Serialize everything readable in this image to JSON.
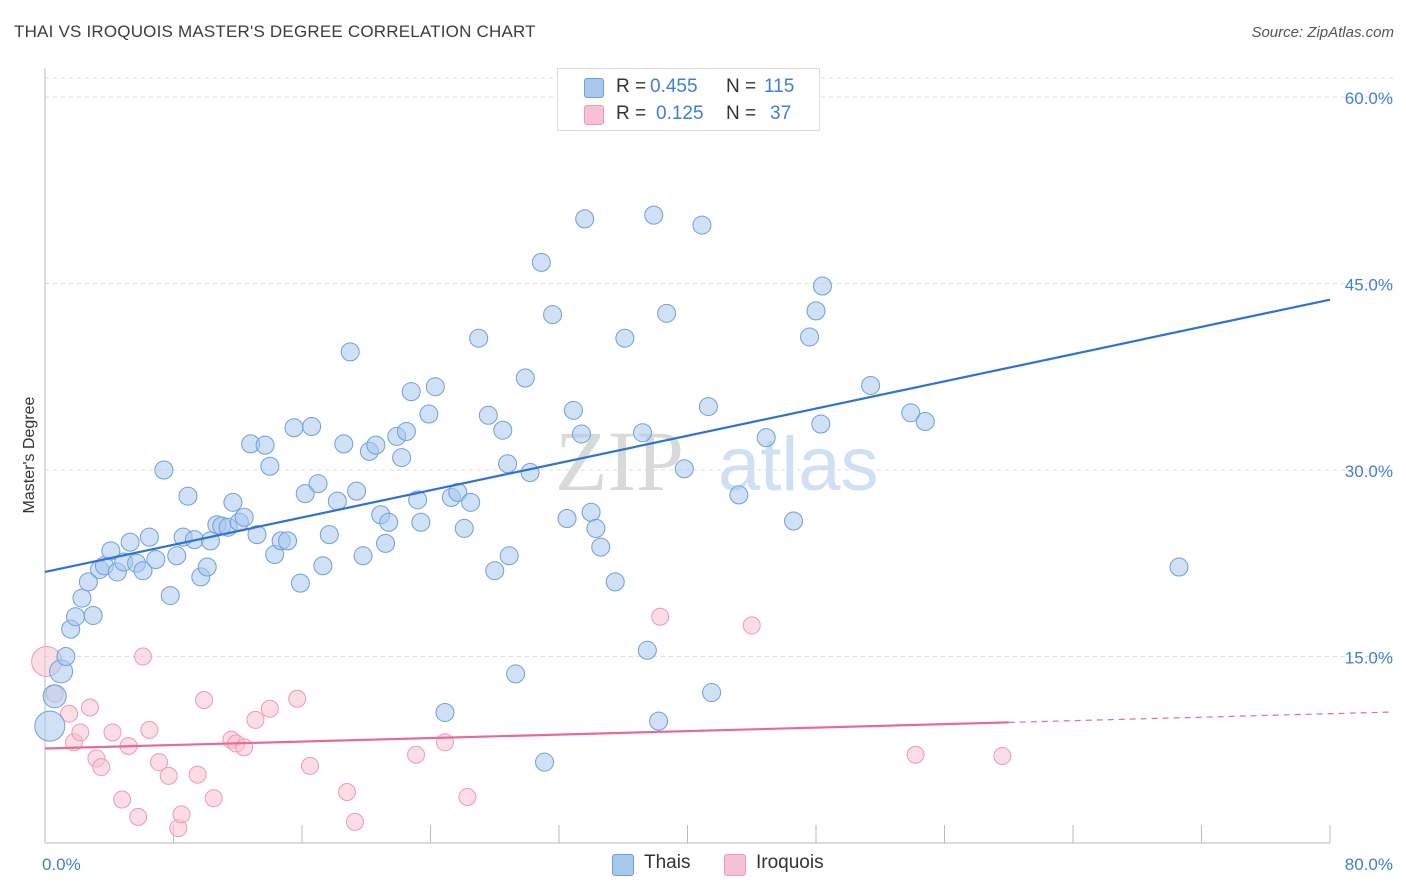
{
  "title": "THAI VS IROQUOIS MASTER'S DEGREE CORRELATION CHART",
  "source": "Source: ZipAtlas.com",
  "watermark": {
    "zip": "ZIP",
    "atlas": "atlas"
  },
  "legend": {
    "rows": [
      {
        "r_label": "R =",
        "r_value": "0.455",
        "n_label": "N =",
        "n_value": "115"
      },
      {
        "r_label": "R =",
        "r_value": "0.125",
        "n_label": "N =",
        "n_value": "37"
      }
    ]
  },
  "bottom_legend": {
    "thais": "Thais",
    "iroquois": "Iroquois"
  },
  "colors": {
    "thais_fill": "#a9c8ee",
    "thais_stroke": "#6d9fdd",
    "thais_line": "#2f73cf",
    "iroquois_fill": "#f6c1d0",
    "iroquois_stroke": "#ef9ab3",
    "iroquois_line": "#e76b95",
    "tick_label": "#3f7fd4",
    "grid": "#dedede"
  },
  "chart_data": {
    "type": "scatter",
    "title": "THAI VS IROQUOIS MASTER'S DEGREE CORRELATION CHART",
    "xlabel": "",
    "ylabel": "Master's Degree",
    "xlim": [
      0,
      80
    ],
    "ylim": [
      0,
      60
    ],
    "x_tick_labels": [
      "0.0%",
      "80.0%"
    ],
    "y_ticks": [
      15,
      30,
      45,
      60
    ],
    "y_tick_labels": [
      "15.0%",
      "30.0%",
      "45.0%",
      "60.0%"
    ],
    "grid": true,
    "legend_position": "top-center",
    "series": [
      {
        "name": "Thais",
        "r": 0.455,
        "n": 115,
        "trend": {
          "x": [
            0,
            80
          ],
          "y": [
            21.8,
            43.7
          ],
          "dashed_from": null
        },
        "points": [
          [
            0.3,
            9.4
          ],
          [
            0.6,
            11.8
          ],
          [
            1.0,
            13.8
          ],
          [
            1.3,
            15.0
          ],
          [
            1.6,
            17.2
          ],
          [
            1.9,
            18.2
          ],
          [
            2.3,
            19.7
          ],
          [
            2.7,
            21.0
          ],
          [
            3.0,
            18.3
          ],
          [
            3.4,
            22.0
          ],
          [
            3.7,
            22.3
          ],
          [
            4.1,
            23.5
          ],
          [
            4.5,
            21.8
          ],
          [
            4.9,
            22.6
          ],
          [
            5.3,
            24.2
          ],
          [
            5.7,
            22.5
          ],
          [
            6.1,
            21.9
          ],
          [
            6.5,
            24.6
          ],
          [
            6.9,
            22.8
          ],
          [
            7.4,
            30.0
          ],
          [
            7.8,
            19.9
          ],
          [
            8.2,
            23.1
          ],
          [
            8.6,
            24.6
          ],
          [
            8.9,
            27.9
          ],
          [
            9.3,
            24.4
          ],
          [
            9.7,
            21.4
          ],
          [
            10.1,
            22.2
          ],
          [
            10.3,
            24.3
          ],
          [
            10.7,
            25.6
          ],
          [
            11.0,
            25.5
          ],
          [
            11.4,
            25.4
          ],
          [
            11.7,
            27.4
          ],
          [
            12.1,
            25.8
          ],
          [
            12.4,
            26.2
          ],
          [
            12.8,
            32.1
          ],
          [
            13.2,
            24.8
          ],
          [
            13.7,
            32.0
          ],
          [
            14.0,
            30.3
          ],
          [
            14.3,
            23.2
          ],
          [
            14.7,
            24.3
          ],
          [
            15.1,
            24.3
          ],
          [
            15.5,
            33.4
          ],
          [
            15.9,
            20.9
          ],
          [
            16.2,
            28.1
          ],
          [
            16.6,
            33.5
          ],
          [
            17.0,
            28.9
          ],
          [
            17.3,
            22.3
          ],
          [
            17.7,
            24.8
          ],
          [
            18.2,
            27.5
          ],
          [
            18.6,
            32.1
          ],
          [
            19.0,
            39.5
          ],
          [
            19.4,
            28.3
          ],
          [
            19.8,
            23.1
          ],
          [
            20.2,
            31.5
          ],
          [
            20.6,
            32.0
          ],
          [
            20.9,
            26.4
          ],
          [
            21.2,
            24.1
          ],
          [
            21.4,
            25.8
          ],
          [
            21.9,
            32.7
          ],
          [
            22.2,
            31.0
          ],
          [
            22.5,
            33.1
          ],
          [
            22.8,
            36.3
          ],
          [
            23.2,
            27.6
          ],
          [
            23.4,
            25.8
          ],
          [
            23.9,
            34.5
          ],
          [
            24.3,
            36.7
          ],
          [
            24.9,
            10.5
          ],
          [
            25.3,
            27.8
          ],
          [
            25.7,
            28.2
          ],
          [
            26.1,
            25.3
          ],
          [
            26.5,
            27.4
          ],
          [
            27.0,
            40.6
          ],
          [
            27.6,
            34.4
          ],
          [
            28.0,
            21.9
          ],
          [
            28.5,
            33.2
          ],
          [
            28.8,
            30.5
          ],
          [
            28.9,
            23.1
          ],
          [
            29.3,
            13.6
          ],
          [
            29.9,
            37.4
          ],
          [
            30.2,
            29.8
          ],
          [
            30.9,
            46.7
          ],
          [
            31.1,
            6.5
          ],
          [
            31.6,
            42.5
          ],
          [
            32.5,
            26.1
          ],
          [
            32.9,
            34.8
          ],
          [
            33.4,
            32.9
          ],
          [
            33.6,
            50.2
          ],
          [
            34.0,
            26.6
          ],
          [
            34.3,
            25.3
          ],
          [
            34.6,
            23.8
          ],
          [
            35.5,
            21.0
          ],
          [
            36.1,
            40.6
          ],
          [
            37.2,
            33.0
          ],
          [
            37.5,
            15.5
          ],
          [
            37.9,
            50.5
          ],
          [
            38.2,
            9.8
          ],
          [
            38.7,
            42.6
          ],
          [
            39.8,
            30.1
          ],
          [
            40.9,
            49.7
          ],
          [
            41.3,
            35.1
          ],
          [
            41.5,
            12.1
          ],
          [
            43.2,
            28.0
          ],
          [
            44.9,
            32.6
          ],
          [
            46.6,
            25.9
          ],
          [
            47.6,
            40.7
          ],
          [
            48.0,
            42.8
          ],
          [
            48.3,
            33.7
          ],
          [
            48.4,
            44.8
          ],
          [
            51.4,
            36.8
          ],
          [
            53.9,
            34.6
          ],
          [
            54.8,
            33.9
          ],
          [
            70.6,
            22.2
          ]
        ]
      },
      {
        "name": "Iroquois",
        "r": 0.125,
        "n": 37,
        "trend": {
          "x": [
            0,
            80
          ],
          "y": [
            7.6,
            10.4
          ],
          "dashed_from": 60
        },
        "points": [
          [
            0.1,
            14.6
          ],
          [
            0.6,
            12.0
          ],
          [
            1.5,
            10.4
          ],
          [
            1.8,
            8.1
          ],
          [
            2.2,
            8.9
          ],
          [
            2.8,
            10.9
          ],
          [
            3.2,
            6.8
          ],
          [
            3.5,
            6.1
          ],
          [
            4.2,
            8.9
          ],
          [
            4.8,
            3.5
          ],
          [
            5.2,
            7.8
          ],
          [
            5.8,
            2.1
          ],
          [
            6.1,
            15.0
          ],
          [
            6.5,
            9.1
          ],
          [
            7.1,
            6.5
          ],
          [
            7.7,
            5.4
          ],
          [
            8.3,
            1.2
          ],
          [
            8.5,
            2.3
          ],
          [
            9.5,
            5.5
          ],
          [
            9.9,
            11.5
          ],
          [
            10.5,
            3.6
          ],
          [
            11.6,
            8.3
          ],
          [
            11.9,
            8.0
          ],
          [
            12.4,
            7.7
          ],
          [
            13.1,
            9.9
          ],
          [
            14.0,
            10.8
          ],
          [
            15.7,
            11.6
          ],
          [
            16.5,
            6.2
          ],
          [
            18.8,
            4.1
          ],
          [
            19.3,
            1.7
          ],
          [
            23.1,
            7.1
          ],
          [
            24.9,
            8.1
          ],
          [
            26.3,
            3.7
          ],
          [
            38.3,
            18.2
          ],
          [
            44.0,
            17.5
          ],
          [
            54.2,
            7.1
          ],
          [
            59.6,
            7.0
          ]
        ]
      }
    ]
  }
}
